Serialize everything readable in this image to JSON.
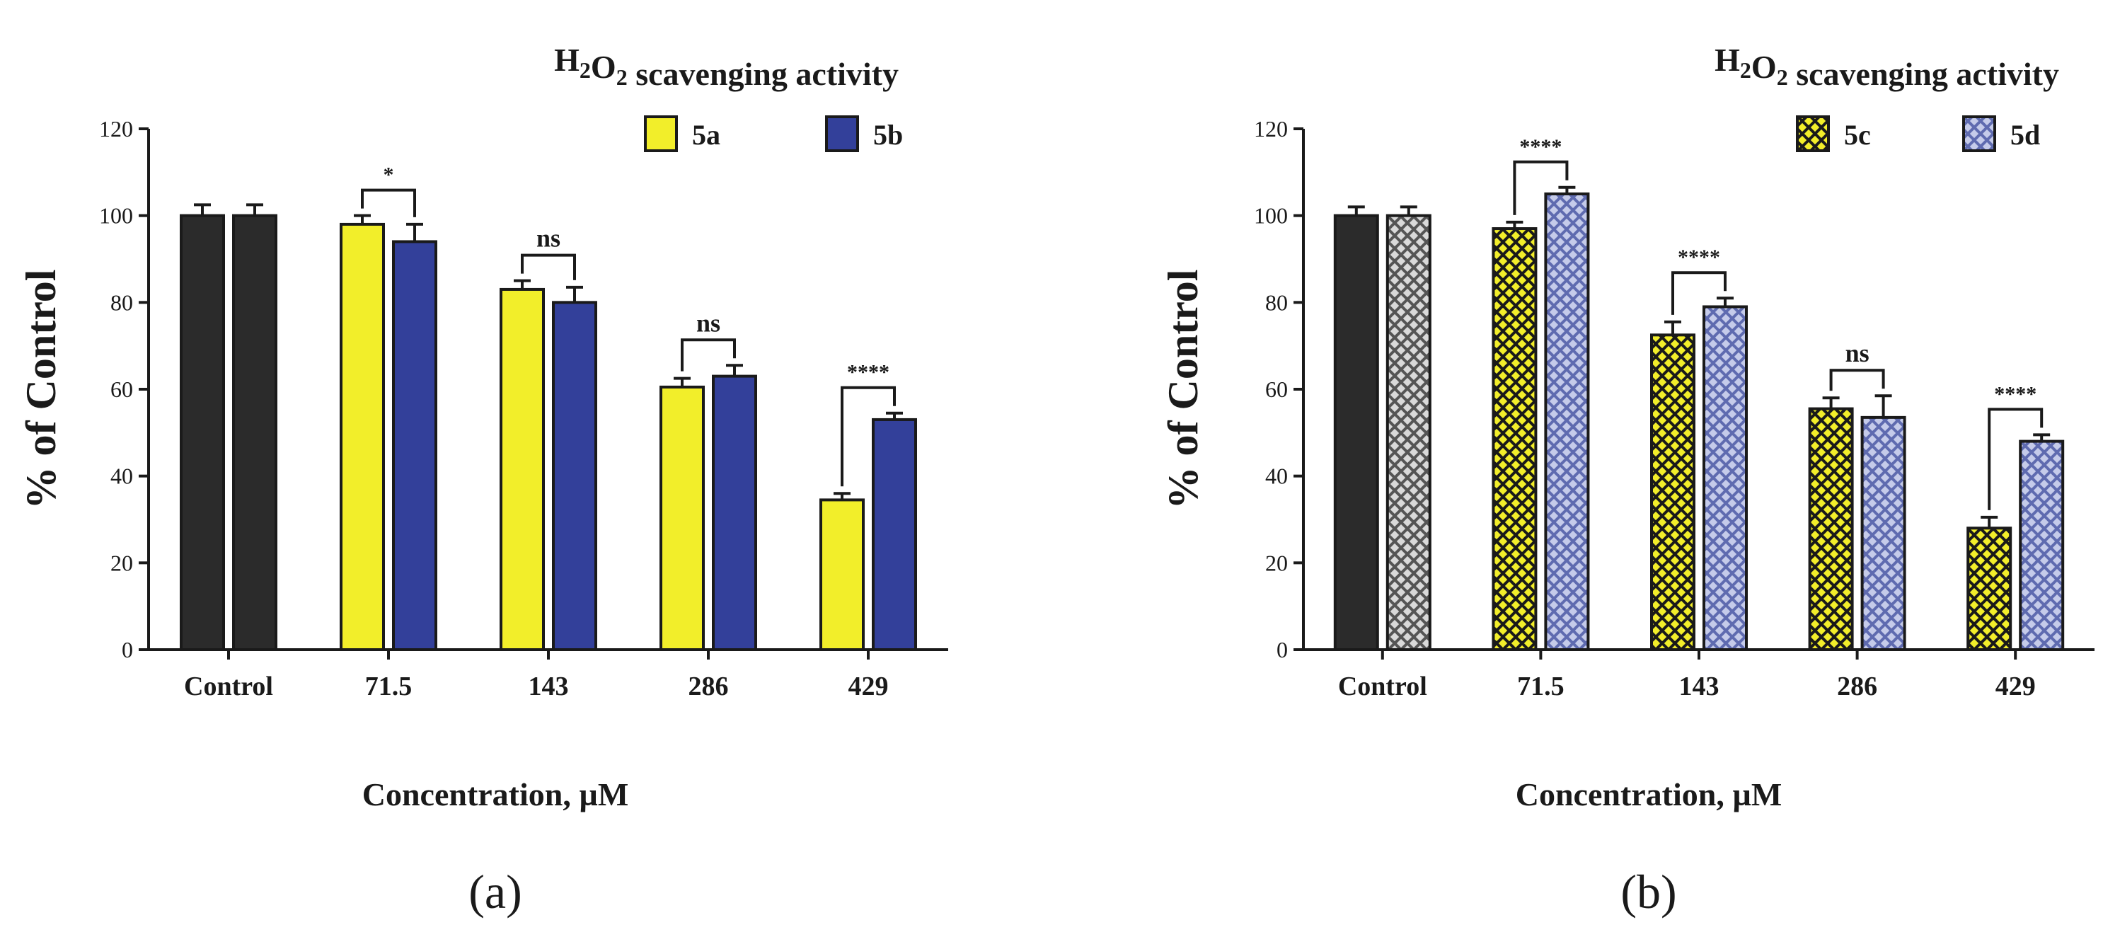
{
  "colors": {
    "control": "#2b2b2b",
    "yellow": "#f2ee2a",
    "blue": "#33409a",
    "gray_hatch": "#9a9a9a",
    "lightblue_hatch": "#8a94c8",
    "axis": "#1a1a1a"
  },
  "chart_data": [
    {
      "type": "bar",
      "panel_label": "(a)",
      "title_prefix": "H",
      "title_sub1": "2",
      "title_mid": "O",
      "title_sub2": "2",
      "title_suffix": " scavenging activity",
      "xlabel": "Concentration, µM",
      "ylabel": "% of Control",
      "ylim": [
        0,
        120
      ],
      "yticks": [
        "0",
        "20",
        "40",
        "60",
        "80",
        "100",
        "120"
      ],
      "categories": [
        "Control",
        "71.5",
        "143",
        "286",
        "429"
      ],
      "series": [
        {
          "name": "5a",
          "values": [
            100,
            98,
            83,
            60.5,
            34.5
          ],
          "errors": [
            2.5,
            2,
            2,
            2,
            1.5
          ]
        },
        {
          "name": "5b",
          "values": [
            100,
            94,
            80,
            63,
            53
          ],
          "errors": [
            2.5,
            4,
            3.5,
            2.5,
            1.5
          ]
        }
      ],
      "significance": [
        "",
        "*",
        "ns",
        "ns",
        "****"
      ],
      "legend": [
        "5a",
        "5b"
      ]
    },
    {
      "type": "bar",
      "panel_label": "(b)",
      "title_prefix": "H",
      "title_sub1": "2",
      "title_mid": "O",
      "title_sub2": "2",
      "title_suffix": " scavenging activity",
      "xlabel": "Concentration, µM",
      "ylabel": "% of Control",
      "ylim": [
        0,
        120
      ],
      "yticks": [
        "0",
        "20",
        "40",
        "60",
        "80",
        "100",
        "120"
      ],
      "categories": [
        "Control",
        "71.5",
        "143",
        "286",
        "429"
      ],
      "series": [
        {
          "name": "5c",
          "values": [
            100,
            97,
            72.5,
            55.5,
            28
          ],
          "errors": [
            2,
            1.5,
            3,
            2.5,
            2.5
          ]
        },
        {
          "name": "5d",
          "values": [
            100,
            105,
            79,
            53.5,
            48
          ],
          "errors": [
            2,
            1.5,
            2,
            5,
            1.5
          ]
        }
      ],
      "significance": [
        "",
        "****",
        "****",
        "ns",
        "****"
      ],
      "legend": [
        "5c",
        "5d"
      ]
    }
  ]
}
